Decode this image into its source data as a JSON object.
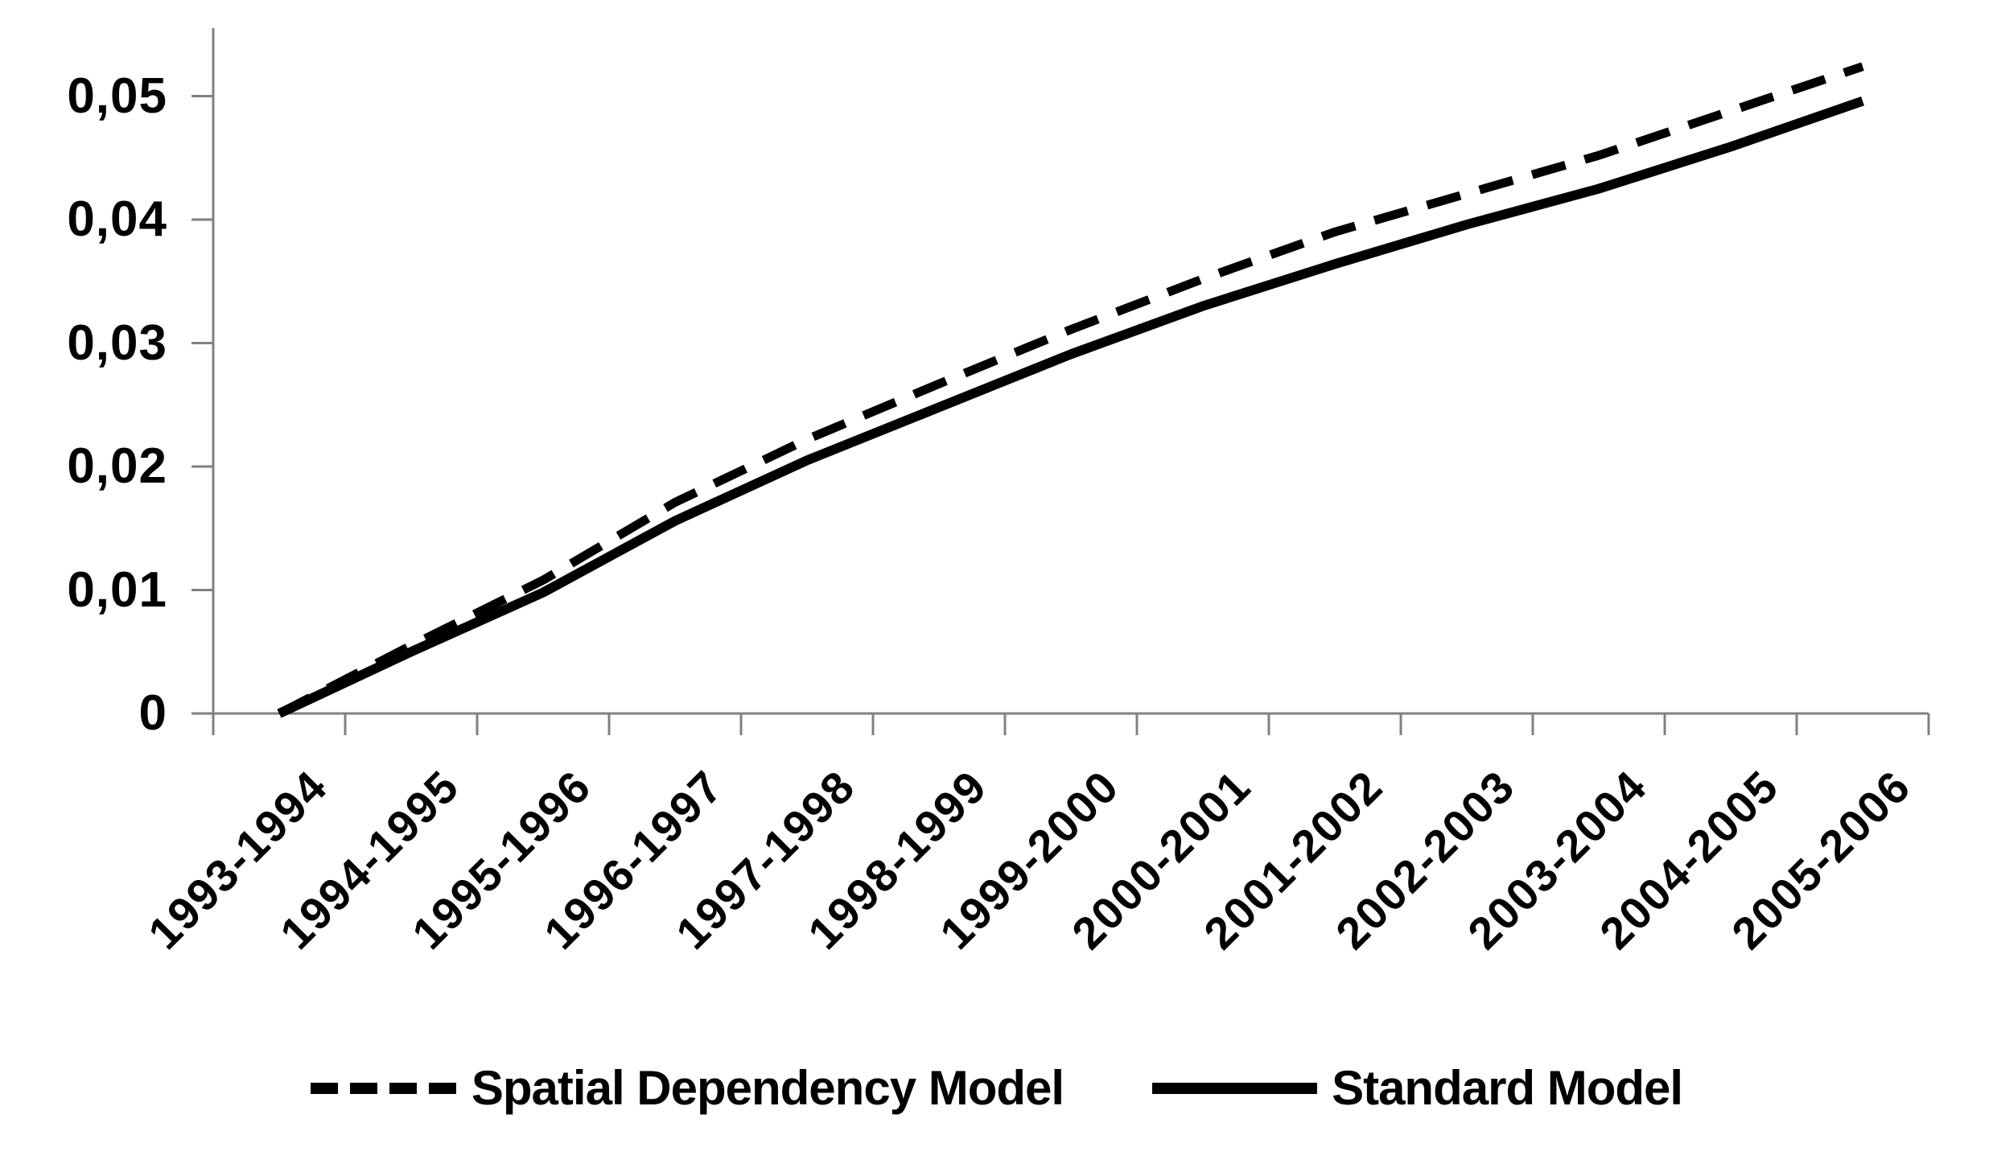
{
  "chart_data": {
    "type": "line",
    "title": "",
    "xlabel": "",
    "ylabel": "",
    "categories": [
      "1993-1994",
      "1994-1995",
      "1995-1996",
      "1996-1997",
      "1997-1998",
      "1998-1999",
      "1999-2000",
      "2000-2001",
      "2001-2002",
      "2002-2003",
      "2003-2004",
      "2004-2005",
      "2005-2006"
    ],
    "series": [
      {
        "name": "Spatial Dependency Model",
        "style": "dashed",
        "values": [
          0,
          0.0055,
          0.0108,
          0.0171,
          0.0222,
          0.0267,
          0.0311,
          0.0352,
          0.039,
          0.0421,
          0.0452,
          0.0488,
          0.0524
        ]
      },
      {
        "name": "Standard Model",
        "style": "solid",
        "values": [
          0,
          0.005,
          0.0098,
          0.0156,
          0.0205,
          0.0248,
          0.0291,
          0.033,
          0.0364,
          0.0396,
          0.0425,
          0.0459,
          0.0496
        ]
      }
    ],
    "y_tick_labels": [
      "0",
      "0,01",
      "0,02",
      "0,03",
      "0,04",
      "0,05"
    ],
    "y_tick_values": [
      0,
      0.01,
      0.02,
      0.03,
      0.04,
      0.05
    ],
    "ylim": [
      0,
      0.055
    ],
    "decimal_separator": ",",
    "grid": false,
    "legend_position": "bottom",
    "colors": {
      "line": "#000000",
      "axis": "#808080",
      "background": "#ffffff",
      "text": "#000000"
    }
  },
  "legend": {
    "items": [
      {
        "label": "Spatial Dependency Model",
        "swatch": "dashed-line-swatch"
      },
      {
        "label": "Standard Model",
        "swatch": "solid-line-swatch"
      }
    ]
  }
}
